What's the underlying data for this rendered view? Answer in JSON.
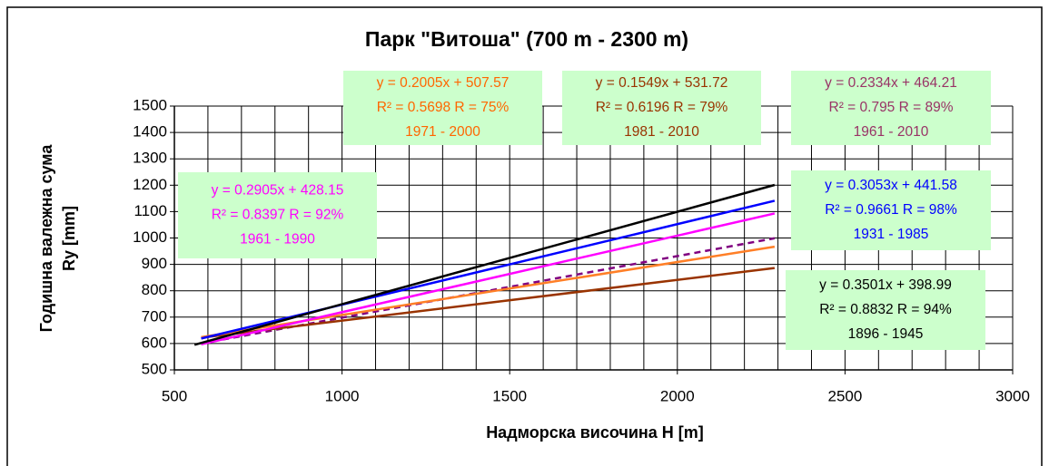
{
  "chart_data": {
    "type": "line",
    "title": "Парк \"Витоша\" (700 m - 2300 m)",
    "x_label": "Надморска височина H [m]",
    "y_label": [
      "Годишна валежна сума",
      "Ry [mm]"
    ],
    "xlim": [
      500,
      3000
    ],
    "xticks": [
      500,
      1000,
      1500,
      2000,
      2500,
      3000
    ],
    "x_minor_grid": [
      600,
      700,
      800,
      900,
      1100,
      1200,
      1300,
      1400,
      1600,
      1700,
      1800,
      1900,
      2100,
      2200,
      2300,
      2400,
      2600,
      2700,
      2800,
      2900
    ],
    "ylim": [
      500,
      1500
    ],
    "yticks": [
      500,
      600,
      700,
      800,
      900,
      1000,
      1100,
      1200,
      1300,
      1400,
      1500
    ],
    "grid": true,
    "series": [
      {
        "color": "#000000",
        "dash": false,
        "x": [
          560,
          2290
        ],
        "values": [
          595,
          1201
        ]
      },
      {
        "color": "#0000ff",
        "dash": false,
        "x": [
          580,
          2290
        ],
        "values": [
          619,
          1141
        ]
      },
      {
        "color": "#ff00ff",
        "dash": false,
        "x": [
          580,
          2290
        ],
        "values": [
          597,
          1093
        ]
      },
      {
        "color": "#ff7f27",
        "dash": false,
        "x": [
          580,
          2290
        ],
        "values": [
          624,
          967
        ]
      },
      {
        "color": "#993300",
        "dash": false,
        "x": [
          580,
          2290
        ],
        "values": [
          622,
          886
        ]
      },
      {
        "color": "#800080",
        "dash": true,
        "x": [
          580,
          2290
        ],
        "values": [
          600,
          999
        ]
      }
    ],
    "annotations": [
      {
        "color": "#ff00ff",
        "lines": [
          "y = 0.2905x + 428.15",
          "R² = 0.8397 R = 92%",
          "1961 - 1990"
        ]
      },
      {
        "color": "#ff6600",
        "lines": [
          "y = 0.2005x + 507.57",
          "R² = 0.5698 R = 75%",
          "1971 - 2000"
        ]
      },
      {
        "color": "#993300",
        "lines": [
          "y = 0.1549x + 531.72",
          "R² = 0.6196 R = 79%",
          "1981 - 2010"
        ]
      },
      {
        "color": "#993366",
        "lines": [
          "y = 0.2334x + 464.21",
          "R² = 0.795 R = 89%",
          "1961 - 2010"
        ]
      },
      {
        "color": "#0000ff",
        "lines": [
          "y = 0.3053x + 441.58",
          "R² = 0.9661 R = 98%",
          "1931 - 1985"
        ]
      },
      {
        "color": "#000000",
        "lines": [
          "y = 0.3501x + 398.99",
          "R² = 0.8832 R = 94%",
          "1896 - 1945"
        ]
      }
    ]
  }
}
